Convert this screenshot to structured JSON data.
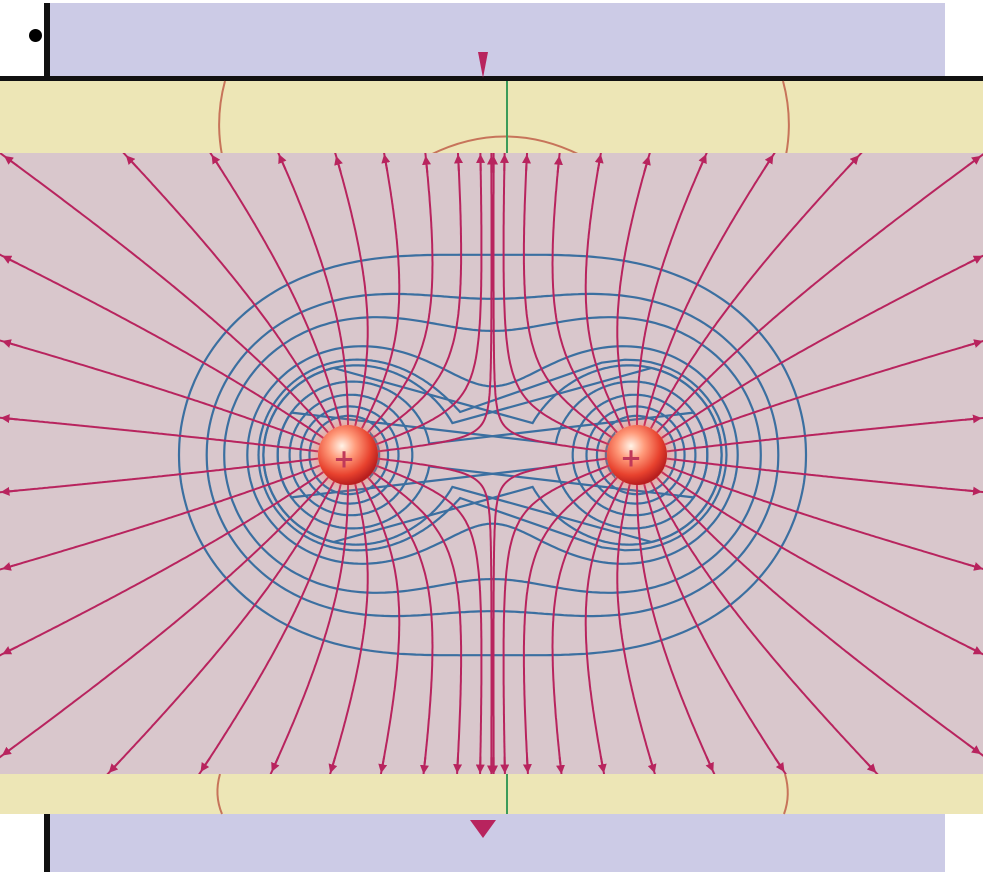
{
  "diagram": {
    "charges": [
      {
        "sign": "+"
      },
      {
        "sign": "+"
      }
    ],
    "colors": {
      "field_lines": "#b8245e",
      "equipotentials": "#3b6fa0",
      "diagram_background": "#d9c7cc",
      "band": "#ede6b6",
      "panel": "#cccbe6",
      "charge": "#e8422e"
    }
  }
}
